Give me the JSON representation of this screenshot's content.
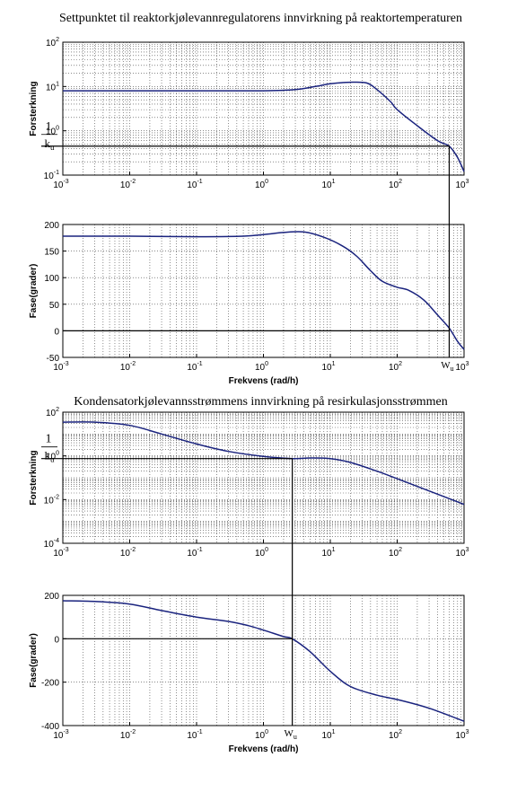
{
  "chart_data": [
    {
      "type": "line",
      "title": "Settpunktet til reaktorkjølevannregulatorens innvirkning på reaktortemperaturen",
      "xlabel": "",
      "ylabel": "Forsterkning",
      "xscale": "log",
      "yscale": "log",
      "xlim": [
        0.001,
        1000
      ],
      "ylim": [
        0.1,
        100
      ],
      "grid": true,
      "x_ticks": [
        "10^-3",
        "10^-2",
        "10^-1",
        "10^0",
        "10^1",
        "10^2",
        "10^3"
      ],
      "y_ticks": [
        "10^-1",
        "10^0",
        "10^1",
        "10^2"
      ],
      "annotation": {
        "numerator": "1",
        "denominator": "k_u",
        "gain": 0.45,
        "wu": 600
      },
      "series": [
        {
          "x": [
            0.001,
            0.01,
            0.1,
            1,
            3,
            6,
            10,
            20,
            35,
            50,
            80,
            100,
            200,
            400,
            600,
            800,
            1000
          ],
          "y": [
            8,
            8,
            8,
            8,
            8.5,
            10,
            11.5,
            12.5,
            12,
            8.5,
            4.5,
            3,
            1.3,
            0.6,
            0.45,
            0.25,
            0.12
          ]
        }
      ]
    },
    {
      "type": "line",
      "title": "",
      "xlabel": "Frekvens  (rad/h)",
      "ylabel": "Fase(grader)",
      "xscale": "log",
      "yscale": "linear",
      "xlim": [
        0.001,
        1000
      ],
      "ylim": [
        -50,
        200
      ],
      "grid": true,
      "x_ticks": [
        "10^-3",
        "10^-2",
        "10^-1",
        "10^0",
        "10^1",
        "10^2",
        "10^3"
      ],
      "y_ticks": [
        "-50",
        "0",
        "50",
        "100",
        "150",
        "200"
      ],
      "annotation": {
        "wu_label": "W_u",
        "wu": 600
      },
      "series": [
        {
          "x": [
            0.001,
            0.01,
            0.1,
            0.5,
            1,
            2,
            4,
            8,
            15,
            25,
            40,
            60,
            100,
            150,
            250,
            400,
            600,
            800,
            1000
          ],
          "y": [
            178,
            178,
            177,
            178,
            181,
            185,
            186,
            176,
            160,
            140,
            113,
            93,
            82,
            76,
            58,
            30,
            5,
            -20,
            -35
          ]
        }
      ]
    },
    {
      "type": "line",
      "title": "Kondensatorkjølevannsstrømmens innvirkning på resirkulasjonsstrømmen",
      "xlabel": "",
      "ylabel": "Forsterkning",
      "xscale": "log",
      "yscale": "log",
      "xlim": [
        0.001,
        1000
      ],
      "ylim": [
        0.0001,
        100
      ],
      "grid": true,
      "x_ticks": [
        "10^-3",
        "10^-2",
        "10^-1",
        "10^0",
        "10^1",
        "10^2",
        "10^3"
      ],
      "y_ticks": [
        "10^-4",
        "10^-2",
        "10^0",
        "10^2"
      ],
      "annotation": {
        "numerator": "1",
        "denominator": "k_u",
        "gain": 0.75,
        "wu": 2.7
      },
      "series": [
        {
          "x": [
            0.001,
            0.003,
            0.01,
            0.03,
            0.1,
            0.3,
            1,
            2.7,
            5,
            10,
            20,
            50,
            100,
            300,
            1000
          ],
          "y": [
            35,
            35,
            25,
            10,
            3.5,
            1.6,
            0.95,
            0.75,
            0.8,
            0.75,
            0.5,
            0.2,
            0.09,
            0.025,
            0.006
          ]
        }
      ]
    },
    {
      "type": "line",
      "title": "",
      "xlabel": "Frekvens  (rad/h)",
      "ylabel": "Fase(grader)",
      "xscale": "log",
      "yscale": "linear",
      "xlim": [
        0.001,
        1000
      ],
      "ylim": [
        -400,
        200
      ],
      "grid": true,
      "x_ticks": [
        "10^-3",
        "10^-2",
        "10^-1",
        "10^0",
        "10^1",
        "10^2",
        "10^3"
      ],
      "y_ticks": [
        "-400",
        "-200",
        "0",
        "200"
      ],
      "annotation": {
        "wu_label": "W_u",
        "wu": 2.7
      },
      "series": [
        {
          "x": [
            0.001,
            0.003,
            0.01,
            0.03,
            0.1,
            0.3,
            0.6,
            1,
            2,
            2.7,
            5,
            10,
            20,
            50,
            100,
            300,
            1000
          ],
          "y": [
            175,
            172,
            160,
            130,
            100,
            80,
            60,
            40,
            10,
            0,
            -60,
            -150,
            -220,
            -260,
            -280,
            -320,
            -380
          ]
        }
      ]
    }
  ]
}
